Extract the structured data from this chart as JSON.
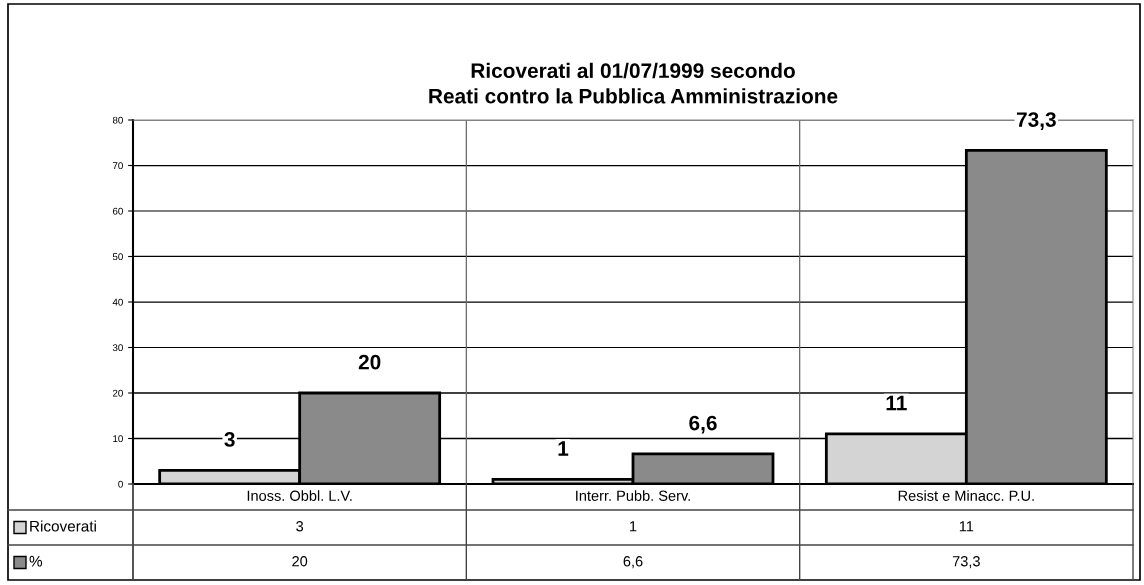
{
  "chart_data": {
    "type": "bar",
    "title": "Ricoverati al 01/07/1999 secondo\nReati contro la Pubblica Amministrazione",
    "categories": [
      "Inoss. Obbl. L.V.",
      "Interr. Pubb. Serv.",
      "Resist e Minacc. P.U."
    ],
    "series": [
      {
        "name": "Ricoverati",
        "color": "#d4d4d4",
        "values": [
          3,
          1,
          11
        ],
        "value_labels": [
          "3",
          "1",
          "11"
        ]
      },
      {
        "name": "%",
        "color": "#8a8a8a",
        "values": [
          20,
          6.6,
          73.3
        ],
        "value_labels": [
          "20",
          "6,6",
          "73,3"
        ]
      }
    ],
    "ylim": [
      0,
      80
    ],
    "yticks": [
      0,
      10,
      20,
      30,
      40,
      50,
      60,
      70,
      80
    ],
    "grid": "y",
    "legend": "bottom"
  }
}
